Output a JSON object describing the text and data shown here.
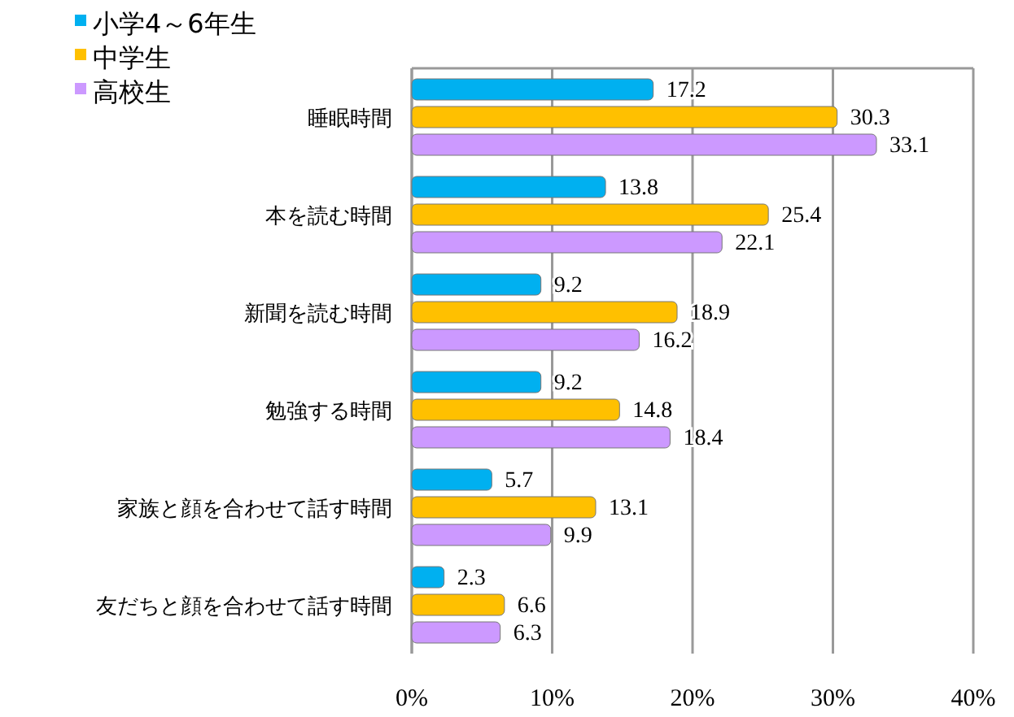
{
  "chart_data": {
    "type": "bar",
    "orientation": "horizontal",
    "categories": [
      "睡眠時間",
      "本を読む時間",
      "新聞を読む時間",
      "勉強する時間",
      "家族と顔を合わせて話す時間",
      "友だちと顔を合わせて話す時間"
    ],
    "series": [
      {
        "name": "小学4～6年生",
        "color": "#00b0f0",
        "values": [
          17.2,
          13.8,
          9.2,
          9.2,
          5.7,
          2.3
        ]
      },
      {
        "name": "中学生",
        "color": "#ffc000",
        "values": [
          30.3,
          25.4,
          18.9,
          14.8,
          13.1,
          6.6
        ]
      },
      {
        "name": "高校生",
        "color": "#cc99ff",
        "values": [
          33.1,
          22.1,
          16.2,
          18.4,
          9.9,
          6.3
        ]
      }
    ],
    "xlim": [
      0,
      40
    ],
    "xticks": [
      {
        "value": 0,
        "label": "0%"
      },
      {
        "value": 10,
        "label": "10%"
      },
      {
        "value": 20,
        "label": "20%"
      },
      {
        "value": 30,
        "label": "30%"
      },
      {
        "value": 40,
        "label": "40%"
      }
    ],
    "grid": "x",
    "legend": "top left",
    "data_labels": true
  }
}
